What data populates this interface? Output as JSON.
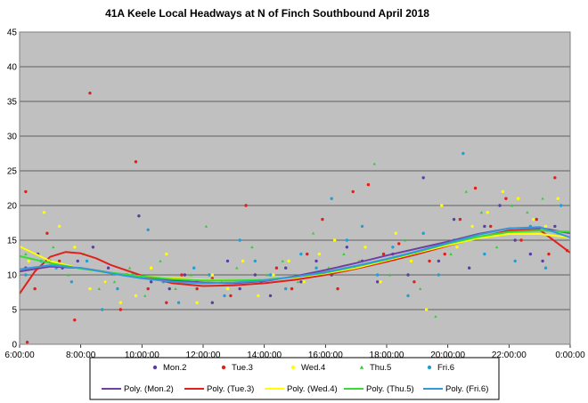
{
  "chart_data": {
    "type": "scatter",
    "title": "41A Keele Local Headways at N of Finch Southbound April 2018",
    "xlabel": "",
    "ylabel": "",
    "x_tick_labels": [
      "6:00:00",
      "8:00:00",
      "10:00:00",
      "12:00:00",
      "14:00:00",
      "16:00:00",
      "18:00:00",
      "20:00:00",
      "22:00:00",
      "0:00:00"
    ],
    "x_ticks_hours": [
      6,
      8,
      10,
      12,
      14,
      16,
      18,
      20,
      22,
      24
    ],
    "xlim_hours": [
      6,
      24
    ],
    "ylim": [
      0,
      45
    ],
    "y_ticks": [
      0,
      5,
      10,
      15,
      20,
      25,
      30,
      35,
      40,
      45
    ],
    "grid": true,
    "legend_placement": "bottom",
    "background": "#c0c0c0",
    "series": [
      {
        "name": "Mon.2",
        "color": "#5b3fa0",
        "marker": "dot",
        "points": [
          [
            6.2,
            11
          ],
          [
            6.6,
            13
          ],
          [
            7.0,
            12
          ],
          [
            7.4,
            11
          ],
          [
            7.9,
            12
          ],
          [
            8.4,
            14
          ],
          [
            8.9,
            11
          ],
          [
            9.5,
            10
          ],
          [
            9.9,
            18.5
          ],
          [
            10.3,
            9
          ],
          [
            10.9,
            8
          ],
          [
            11.4,
            10
          ],
          [
            11.8,
            9
          ],
          [
            12.3,
            6
          ],
          [
            12.8,
            12
          ],
          [
            13.2,
            8
          ],
          [
            13.7,
            10
          ],
          [
            14.2,
            7
          ],
          [
            14.7,
            11
          ],
          [
            15.2,
            9
          ],
          [
            15.7,
            12
          ],
          [
            16.2,
            10
          ],
          [
            16.7,
            14
          ],
          [
            17.2,
            12
          ],
          [
            17.7,
            9
          ],
          [
            18.2,
            13
          ],
          [
            18.7,
            10
          ],
          [
            19.2,
            24
          ],
          [
            19.7,
            12
          ],
          [
            20.2,
            18
          ],
          [
            20.7,
            11
          ],
          [
            21.2,
            17
          ],
          [
            21.7,
            20
          ],
          [
            22.2,
            15
          ],
          [
            22.7,
            13
          ],
          [
            23.1,
            12
          ],
          [
            23.5,
            17
          ]
        ]
      },
      {
        "name": "Tue.3",
        "color": "#e0201a",
        "marker": "dot",
        "points": [
          [
            6.2,
            22
          ],
          [
            6.25,
            0.3
          ],
          [
            6.5,
            8
          ],
          [
            6.9,
            16
          ],
          [
            7.3,
            12
          ],
          [
            7.8,
            3.5
          ],
          [
            8.3,
            36.2
          ],
          [
            8.8,
            9
          ],
          [
            9.3,
            5
          ],
          [
            9.8,
            26.3
          ],
          [
            10.2,
            8
          ],
          [
            10.8,
            6
          ],
          [
            11.3,
            10
          ],
          [
            11.8,
            8
          ],
          [
            12.3,
            9.5
          ],
          [
            12.9,
            7
          ],
          [
            13.4,
            20
          ],
          [
            13.9,
            9
          ],
          [
            14.4,
            11
          ],
          [
            14.9,
            8
          ],
          [
            15.4,
            13
          ],
          [
            15.9,
            18
          ],
          [
            16.4,
            8
          ],
          [
            16.9,
            22
          ],
          [
            17.4,
            23
          ],
          [
            17.9,
            13
          ],
          [
            18.4,
            14.5
          ],
          [
            18.9,
            9
          ],
          [
            19.4,
            12
          ],
          [
            19.9,
            13
          ],
          [
            20.4,
            18
          ],
          [
            20.9,
            22.5
          ],
          [
            21.4,
            17
          ],
          [
            21.9,
            21
          ],
          [
            22.4,
            15
          ],
          [
            22.9,
            18
          ],
          [
            23.3,
            13
          ],
          [
            23.5,
            24
          ],
          [
            23.9,
            13.5
          ]
        ]
      },
      {
        "name": "Wed.4",
        "color": "#ffff00",
        "marker": "dot",
        "points": [
          [
            6.3,
            12
          ],
          [
            6.8,
            19
          ],
          [
            7.3,
            17
          ],
          [
            7.8,
            14
          ],
          [
            8.3,
            8
          ],
          [
            8.8,
            9
          ],
          [
            9.3,
            6
          ],
          [
            9.8,
            7
          ],
          [
            10.3,
            11
          ],
          [
            10.8,
            13
          ],
          [
            11.3,
            9
          ],
          [
            11.8,
            6
          ],
          [
            12.3,
            10
          ],
          [
            12.8,
            8
          ],
          [
            13.3,
            12
          ],
          [
            13.8,
            7
          ],
          [
            14.3,
            10
          ],
          [
            14.8,
            12
          ],
          [
            15.3,
            9
          ],
          [
            15.8,
            13
          ],
          [
            16.3,
            15
          ],
          [
            16.8,
            11
          ],
          [
            17.3,
            14
          ],
          [
            17.8,
            9
          ],
          [
            18.3,
            16
          ],
          [
            18.8,
            12
          ],
          [
            19.3,
            5
          ],
          [
            19.8,
            20
          ],
          [
            20.3,
            14
          ],
          [
            20.8,
            17
          ],
          [
            21.3,
            19
          ],
          [
            21.8,
            22
          ],
          [
            22.3,
            21
          ],
          [
            22.8,
            18
          ],
          [
            23.2,
            17
          ],
          [
            23.6,
            21
          ]
        ]
      },
      {
        "name": "Thu.5",
        "color": "#33cc33",
        "marker": "triangle",
        "points": [
          [
            6.2,
            13
          ],
          [
            6.6,
            11
          ],
          [
            7.1,
            14
          ],
          [
            7.6,
            10
          ],
          [
            8.1,
            13
          ],
          [
            8.6,
            8
          ],
          [
            9.1,
            9
          ],
          [
            9.6,
            11
          ],
          [
            10.1,
            7
          ],
          [
            10.6,
            12
          ],
          [
            11.1,
            8
          ],
          [
            11.6,
            10
          ],
          [
            12.1,
            17
          ],
          [
            12.6,
            9
          ],
          [
            13.1,
            11
          ],
          [
            13.6,
            14
          ],
          [
            14.1,
            10
          ],
          [
            14.6,
            12
          ],
          [
            15.1,
            9
          ],
          [
            15.6,
            16
          ],
          [
            16.1,
            11
          ],
          [
            16.6,
            13
          ],
          [
            17.1,
            12
          ],
          [
            17.6,
            26
          ],
          [
            18.1,
            10
          ],
          [
            18.6,
            15
          ],
          [
            19.1,
            8
          ],
          [
            19.6,
            4
          ],
          [
            20.1,
            13
          ],
          [
            20.6,
            22
          ],
          [
            21.1,
            19
          ],
          [
            21.6,
            14
          ],
          [
            22.1,
            20
          ],
          [
            22.6,
            19
          ],
          [
            23.1,
            21
          ],
          [
            23.6,
            16
          ]
        ]
      },
      {
        "name": "Fri.6",
        "color": "#1f9fd8",
        "marker": "dot",
        "points": [
          [
            6.2,
            10
          ],
          [
            6.7,
            12
          ],
          [
            7.2,
            11
          ],
          [
            7.7,
            9
          ],
          [
            8.2,
            12
          ],
          [
            8.7,
            5
          ],
          [
            9.2,
            8
          ],
          [
            9.7,
            10
          ],
          [
            10.2,
            16.5
          ],
          [
            10.7,
            9
          ],
          [
            11.2,
            6
          ],
          [
            11.7,
            11
          ],
          [
            12.2,
            10
          ],
          [
            12.7,
            7
          ],
          [
            13.2,
            15
          ],
          [
            13.7,
            12
          ],
          [
            14.2,
            10
          ],
          [
            14.7,
            8
          ],
          [
            15.2,
            13
          ],
          [
            15.7,
            11
          ],
          [
            16.2,
            21
          ],
          [
            16.7,
            15
          ],
          [
            17.2,
            17
          ],
          [
            17.7,
            10
          ],
          [
            18.2,
            14
          ],
          [
            18.7,
            7
          ],
          [
            19.2,
            16
          ],
          [
            19.7,
            10
          ],
          [
            20.2,
            15
          ],
          [
            20.5,
            27.5
          ],
          [
            21.2,
            13
          ],
          [
            21.7,
            16
          ],
          [
            22.2,
            12
          ],
          [
            22.7,
            17
          ],
          [
            23.2,
            11
          ],
          [
            23.7,
            20
          ]
        ]
      }
    ],
    "trendlines": [
      {
        "name": "Poly. (Mon.2)",
        "color": "#7040a0",
        "points": [
          [
            6,
            10.5
          ],
          [
            7,
            11.2
          ],
          [
            8,
            11
          ],
          [
            9,
            10.3
          ],
          [
            10,
            9.7
          ],
          [
            11,
            9.2
          ],
          [
            12,
            8.9
          ],
          [
            13,
            8.8
          ],
          [
            14,
            9.1
          ],
          [
            15,
            9.8
          ],
          [
            16,
            10.7
          ],
          [
            17,
            11.7
          ],
          [
            18,
            12.8
          ],
          [
            19,
            13.8
          ],
          [
            20,
            14.8
          ],
          [
            21,
            15.9
          ],
          [
            22,
            16.7
          ],
          [
            23,
            16.8
          ],
          [
            24,
            16
          ]
        ]
      },
      {
        "name": "Poly. (Tue.3)",
        "color": "#e0201a",
        "points": [
          [
            6,
            7.3
          ],
          [
            6.5,
            10.5
          ],
          [
            7,
            12.6
          ],
          [
            7.5,
            13.3
          ],
          [
            8,
            13.1
          ],
          [
            8.5,
            12.4
          ],
          [
            9,
            11.4
          ],
          [
            10,
            9.9
          ],
          [
            11,
            8.8
          ],
          [
            12,
            8.4
          ],
          [
            13,
            8.5
          ],
          [
            14,
            8.8
          ],
          [
            15,
            9.3
          ],
          [
            16,
            10
          ],
          [
            17,
            10.9
          ],
          [
            18,
            11.9
          ],
          [
            19,
            13
          ],
          [
            20,
            14.2
          ],
          [
            21,
            15.4
          ],
          [
            22,
            16.4
          ],
          [
            23,
            16.5
          ],
          [
            24,
            13.2
          ]
        ]
      },
      {
        "name": "Poly. (Wed.4)",
        "color": "#ffff00",
        "points": [
          [
            6,
            14.1
          ],
          [
            7,
            12
          ],
          [
            8,
            10.9
          ],
          [
            9,
            10.2
          ],
          [
            10,
            9.8
          ],
          [
            11,
            9.5
          ],
          [
            12,
            9.3
          ],
          [
            13,
            9.2
          ],
          [
            14,
            9.3
          ],
          [
            15,
            9.6
          ],
          [
            16,
            10.2
          ],
          [
            17,
            11
          ],
          [
            18,
            12.1
          ],
          [
            19,
            13.2
          ],
          [
            20,
            14.3
          ],
          [
            21,
            15.3
          ],
          [
            22,
            15.9
          ],
          [
            23,
            15.9
          ],
          [
            24,
            15.4
          ]
        ]
      },
      {
        "name": "Poly. (Thu.5)",
        "color": "#33dd33",
        "points": [
          [
            6,
            12.7
          ],
          [
            7,
            11.7
          ],
          [
            8,
            10.9
          ],
          [
            9,
            10.3
          ],
          [
            10,
            9.8
          ],
          [
            11,
            9.4
          ],
          [
            12,
            9.2
          ],
          [
            13,
            9.2
          ],
          [
            14,
            9.3
          ],
          [
            15,
            9.7
          ],
          [
            16,
            10.3
          ],
          [
            17,
            11.2
          ],
          [
            18,
            12.2
          ],
          [
            19,
            13.3
          ],
          [
            20,
            14.5
          ],
          [
            21,
            15.5
          ],
          [
            22,
            16.2
          ],
          [
            23,
            16.4
          ],
          [
            24,
            16.2
          ]
        ]
      },
      {
        "name": "Poly. (Fri.6)",
        "color": "#3399dd",
        "points": [
          [
            6,
            10.8
          ],
          [
            7,
            11.4
          ],
          [
            8,
            11
          ],
          [
            9,
            10.2
          ],
          [
            10,
            9.5
          ],
          [
            11,
            9
          ],
          [
            12,
            8.8
          ],
          [
            13,
            8.9
          ],
          [
            14,
            9.2
          ],
          [
            15,
            9.7
          ],
          [
            16,
            10.4
          ],
          [
            17,
            11.3
          ],
          [
            18,
            12.3
          ],
          [
            19,
            13.4
          ],
          [
            20,
            14.6
          ],
          [
            21,
            15.8
          ],
          [
            22,
            16.7
          ],
          [
            23,
            16.9
          ],
          [
            24,
            15.4
          ]
        ]
      }
    ]
  }
}
